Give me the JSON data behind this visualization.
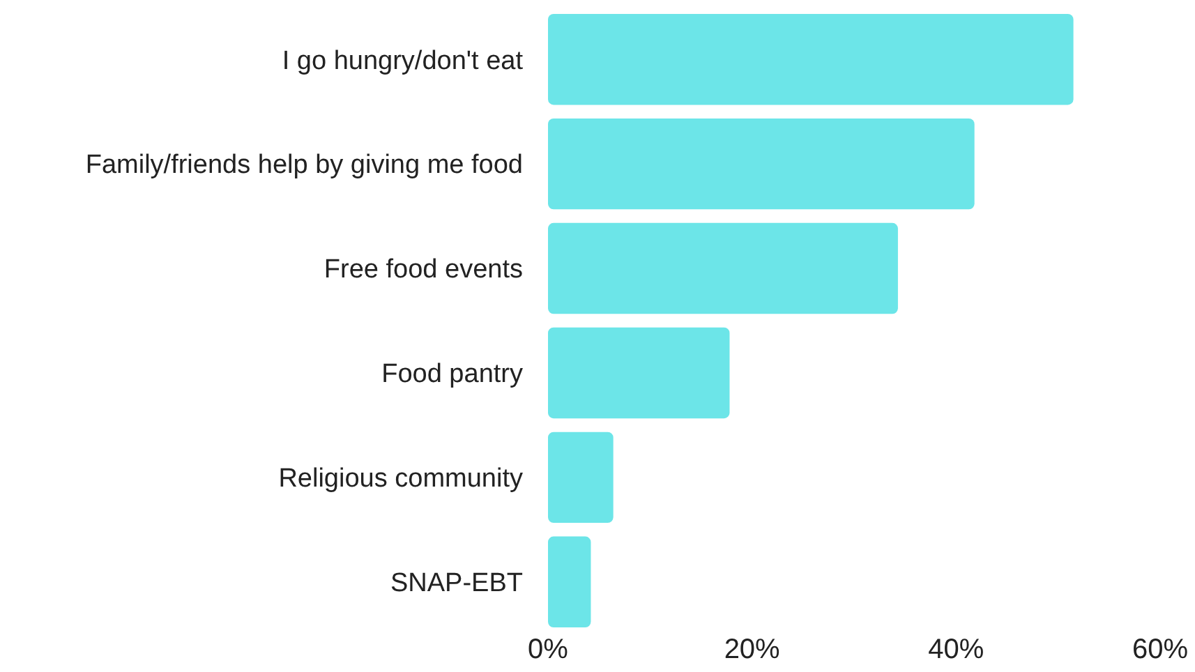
{
  "chart_data": {
    "type": "bar",
    "orientation": "horizontal",
    "categories": [
      "I go hungry/don't eat",
      "Family/friends help by giving me food",
      "Free food events",
      "Food pantry",
      "Religious community",
      "SNAP-EBT"
    ],
    "values": [
      51.5,
      41.8,
      34.3,
      17.8,
      6.4,
      4.2
    ],
    "color": "#6ce5e8",
    "xlim": [
      0,
      60
    ],
    "xticks": [
      {
        "value": 0,
        "label": "0%"
      },
      {
        "value": 20,
        "label": "20%"
      },
      {
        "value": 40,
        "label": "40%"
      },
      {
        "value": 60,
        "label": "60%"
      }
    ],
    "grid": false
  }
}
